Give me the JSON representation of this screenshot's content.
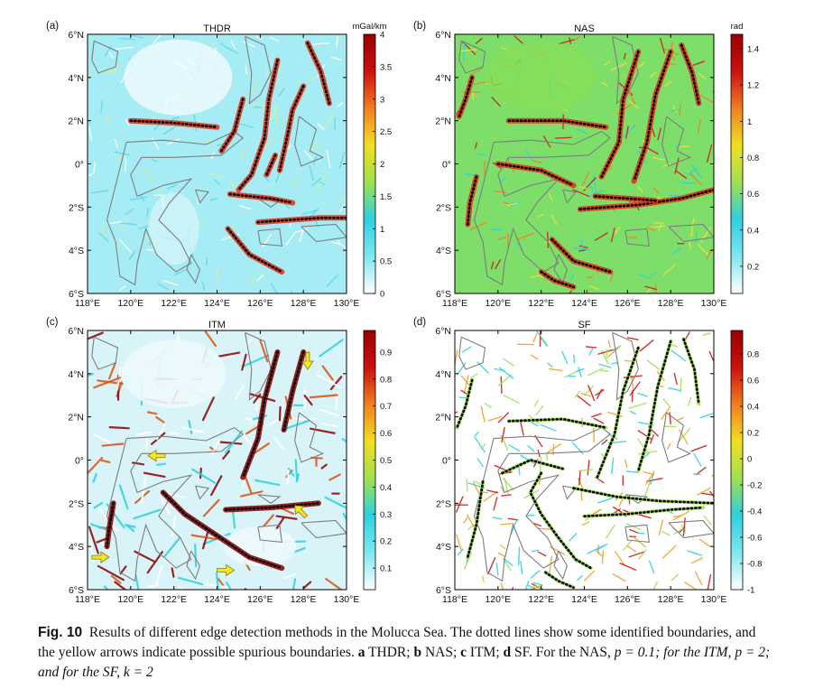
{
  "figure": {
    "panels": [
      {
        "id": "a",
        "label": "(a)",
        "title": "THDR",
        "cb_unit": "mGal/km",
        "cb_ticks": [
          "4",
          "3.5",
          "3",
          "2.5",
          "2",
          "1.5",
          "1",
          "0.5",
          "0"
        ],
        "cb_values": [
          4,
          3.5,
          3,
          2.5,
          2,
          1.5,
          1,
          0.5,
          0
        ]
      },
      {
        "id": "b",
        "label": "(b)",
        "title": "NAS",
        "cb_unit": "rad",
        "cb_ticks": [
          "1.4",
          "1.2",
          "1",
          "0.8",
          "0.6",
          "0.4",
          "0.2"
        ],
        "cb_values": [
          1.4,
          1.2,
          1.0,
          0.8,
          0.6,
          0.4,
          0.2
        ]
      },
      {
        "id": "c",
        "label": "(c)",
        "title": "ITM",
        "cb_unit": "",
        "cb_ticks": [
          "0.9",
          "0.8",
          "0.7",
          "0.6",
          "0.5",
          "0.4",
          "0.3",
          "0.2",
          "0.1"
        ],
        "cb_values": [
          0.9,
          0.8,
          0.7,
          0.6,
          0.5,
          0.4,
          0.3,
          0.2,
          0.1
        ]
      },
      {
        "id": "d",
        "label": "(d)",
        "title": "SF",
        "cb_unit": "",
        "cb_ticks": [
          "0.8",
          "0.6",
          "0.4",
          "0.2",
          "0",
          "-0.2",
          "-0.4",
          "-0.6",
          "-0.8",
          "-1"
        ],
        "cb_values": [
          0.8,
          0.6,
          0.4,
          0.2,
          0,
          -0.2,
          -0.4,
          -0.6,
          -0.8,
          -1
        ]
      }
    ],
    "x_ticks": [
      "118°E",
      "120°E",
      "122°E",
      "124°E",
      "126°E",
      "128°E",
      "130°E"
    ],
    "y_ticks": [
      "6°N",
      "4°N",
      "2°N",
      "0°",
      "2°S",
      "4°S",
      "6°S"
    ],
    "colors": {
      "low": "#ffffff",
      "cyan": "#2ed0e0",
      "mid": "#c8e030",
      "high": "#cc1010",
      "coast": "#888888",
      "dots": "#000000"
    }
  },
  "caption": {
    "fig_label": "Fig. 10",
    "text1": "Results of different edge detection methods in the Molucca Sea. The dotted lines show some identified boundaries, and the yellow arrows indicate possible spurious boundaries.",
    "a": "a",
    "a_text": "THDR;",
    "b": "b",
    "b_text": "NAS;",
    "c": "c",
    "c_text": "ITM;",
    "d": "d",
    "d_text": "SF. For the NAS,",
    "p1": "p = 0.1; for the ITM,",
    "p2": "p = 2; and for the SF,",
    "k": "k = 2"
  }
}
